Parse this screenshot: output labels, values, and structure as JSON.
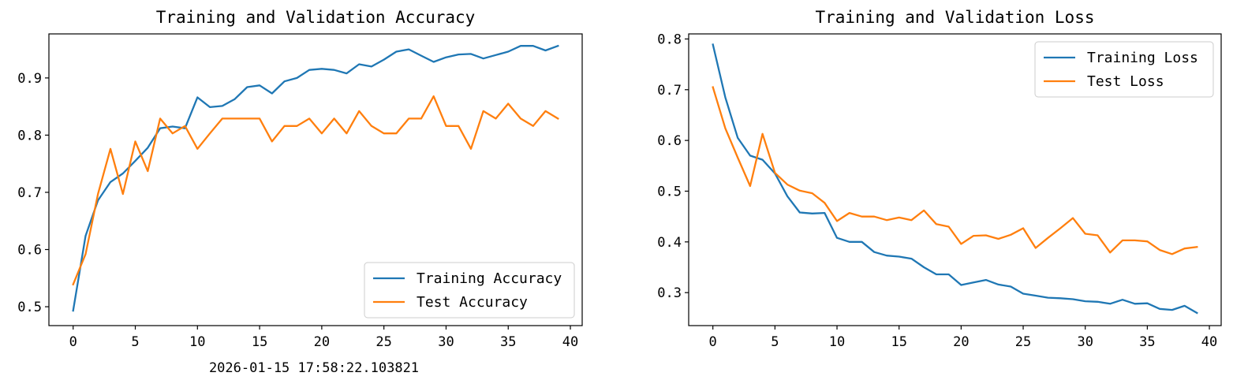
{
  "chart_data": [
    {
      "type": "line",
      "title": "Training and Validation Accuracy",
      "xlabel": "",
      "ylabel": "",
      "xlim": [
        -1.95,
        40.95
      ],
      "ylim": [
        0.467,
        0.977
      ],
      "xticks": [
        0,
        5,
        10,
        15,
        20,
        25,
        30,
        35,
        40
      ],
      "yticks": [
        0.5,
        0.6,
        0.7,
        0.8,
        0.9
      ],
      "ytick_labels": [
        "0.5",
        "0.6",
        "0.7",
        "0.8",
        "0.9"
      ],
      "legend_position": "bottom-right",
      "x": [
        0,
        1,
        2,
        3,
        4,
        5,
        6,
        7,
        8,
        9,
        10,
        11,
        12,
        13,
        14,
        15,
        16,
        17,
        18,
        19,
        20,
        21,
        22,
        23,
        24,
        25,
        26,
        27,
        28,
        29,
        30,
        31,
        32,
        33,
        34,
        35,
        36,
        37,
        38,
        39
      ],
      "series": [
        {
          "name": "Training Accuracy",
          "color": "#1f77b4",
          "values": [
            0.493,
            0.624,
            0.686,
            0.718,
            0.733,
            0.755,
            0.778,
            0.812,
            0.815,
            0.812,
            0.866,
            0.849,
            0.851,
            0.863,
            0.884,
            0.887,
            0.873,
            0.894,
            0.9,
            0.914,
            0.916,
            0.914,
            0.908,
            0.924,
            0.92,
            0.932,
            0.946,
            0.95,
            0.939,
            0.928,
            0.936,
            0.941,
            0.942,
            0.934,
            0.94,
            0.946,
            0.956,
            0.956,
            0.948,
            0.956
          ]
        },
        {
          "name": "Test Accuracy",
          "color": "#ff7f0e",
          "values": [
            0.539,
            0.592,
            0.697,
            0.776,
            0.697,
            0.789,
            0.737,
            0.829,
            0.803,
            0.816,
            0.776,
            0.803,
            0.829,
            0.829,
            0.829,
            0.829,
            0.789,
            0.816,
            0.816,
            0.829,
            0.803,
            0.829,
            0.803,
            0.842,
            0.816,
            0.803,
            0.803,
            0.829,
            0.829,
            0.868,
            0.816,
            0.816,
            0.776,
            0.842,
            0.829,
            0.855,
            0.829,
            0.816,
            0.842,
            0.829
          ]
        }
      ]
    },
    {
      "type": "line",
      "title": "Training and Validation Loss",
      "xlabel": "",
      "ylabel": "",
      "xlim": [
        -1.95,
        40.95
      ],
      "ylim": [
        0.235,
        0.81
      ],
      "xticks": [
        0,
        5,
        10,
        15,
        20,
        25,
        30,
        35,
        40
      ],
      "yticks": [
        0.3,
        0.4,
        0.5,
        0.6,
        0.7,
        0.8
      ],
      "ytick_labels": [
        "0.3",
        "0.4",
        "0.5",
        "0.6",
        "0.7",
        "0.8"
      ],
      "legend_position": "top-right",
      "x": [
        0,
        1,
        2,
        3,
        4,
        5,
        6,
        7,
        8,
        9,
        10,
        11,
        12,
        13,
        14,
        15,
        16,
        17,
        18,
        19,
        20,
        21,
        22,
        23,
        24,
        25,
        26,
        27,
        28,
        29,
        30,
        31,
        32,
        33,
        34,
        35,
        36,
        37,
        38,
        39
      ],
      "series": [
        {
          "name": "Training Loss",
          "color": "#1f77b4",
          "values": [
            0.789,
            0.685,
            0.605,
            0.57,
            0.562,
            0.535,
            0.49,
            0.458,
            0.456,
            0.457,
            0.408,
            0.4,
            0.4,
            0.38,
            0.373,
            0.371,
            0.367,
            0.35,
            0.336,
            0.336,
            0.315,
            0.32,
            0.325,
            0.316,
            0.312,
            0.298,
            0.294,
            0.29,
            0.289,
            0.287,
            0.283,
            0.282,
            0.278,
            0.286,
            0.278,
            0.279,
            0.268,
            0.266,
            0.274,
            0.26
          ]
        },
        {
          "name": "Test Loss",
          "color": "#ff7f0e",
          "values": [
            0.705,
            0.624,
            0.566,
            0.51,
            0.613,
            0.536,
            0.513,
            0.501,
            0.496,
            0.477,
            0.441,
            0.457,
            0.45,
            0.45,
            0.443,
            0.448,
            0.443,
            0.462,
            0.435,
            0.43,
            0.396,
            0.412,
            0.413,
            0.406,
            0.414,
            0.427,
            0.388,
            0.408,
            0.427,
            0.447,
            0.416,
            0.413,
            0.379,
            0.403,
            0.403,
            0.401,
            0.384,
            0.376,
            0.387,
            0.39
          ]
        }
      ]
    }
  ],
  "timestamp": "2026-01-15 17:58:22.103821"
}
